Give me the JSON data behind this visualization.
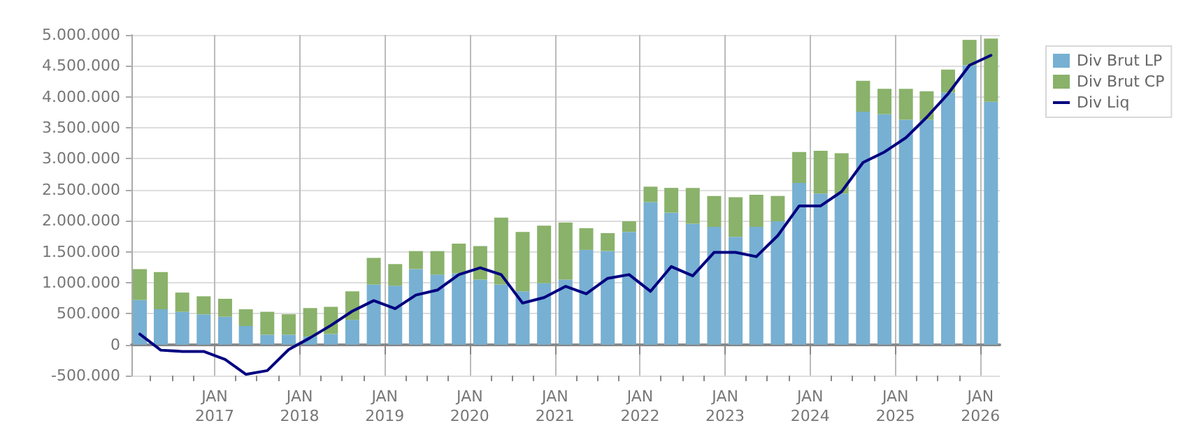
{
  "chart_data": {
    "type": "bar",
    "stacked": true,
    "x": [
      "2016-02-15",
      "2016-05-15",
      "2016-08-15",
      "2016-11-15",
      "2017-02-15",
      "2017-05-15",
      "2017-08-15",
      "2017-11-15",
      "2018-02-15",
      "2018-05-15",
      "2018-08-15",
      "2018-11-15",
      "2019-02-15",
      "2019-05-15",
      "2019-08-15",
      "2019-11-15",
      "2020-02-15",
      "2020-05-15",
      "2020-08-15",
      "2020-11-15",
      "2021-02-15",
      "2021-05-15",
      "2021-08-15",
      "2021-11-15",
      "2022-02-15",
      "2022-05-15",
      "2022-08-15",
      "2022-11-15",
      "2023-02-15",
      "2023-05-15",
      "2023-08-15",
      "2023-11-15",
      "2024-02-15",
      "2024-05-15",
      "2024-08-15",
      "2024-11-15",
      "2025-02-15",
      "2025-05-15",
      "2025-08-15",
      "2025-11-15",
      "2026-02-15"
    ],
    "series": [
      {
        "name": "Div Brut LP",
        "color": "#77b0d2",
        "values": [
          720000,
          570000,
          530000,
          490000,
          450000,
          300000,
          160000,
          160000,
          130000,
          170000,
          400000,
          970000,
          950000,
          1220000,
          1130000,
          1150000,
          1050000,
          970000,
          860000,
          990000,
          1050000,
          1530000,
          1510000,
          1820000,
          2300000,
          2130000,
          1950000,
          1900000,
          1740000,
          1900000,
          1990000,
          2610000,
          2440000,
          2440000,
          3760000,
          3720000,
          3630000,
          3630000,
          4070000,
          4510000,
          3920000
        ]
      },
      {
        "name": "Div Brut CP",
        "color": "#8ab26a",
        "values": [
          500000,
          600000,
          310000,
          290000,
          290000,
          270000,
          370000,
          330000,
          460000,
          440000,
          460000,
          430000,
          350000,
          290000,
          380000,
          480000,
          540000,
          1080000,
          960000,
          930000,
          920000,
          350000,
          290000,
          170000,
          250000,
          400000,
          580000,
          500000,
          640000,
          520000,
          410000,
          500000,
          690000,
          650000,
          500000,
          410000,
          500000,
          460000,
          370000,
          410000,
          1020000
        ]
      },
      {
        "name": "Div Liq",
        "type": "line",
        "color": "#000080",
        "values": [
          170000,
          -90000,
          -110000,
          -110000,
          -240000,
          -480000,
          -420000,
          -80000,
          110000,
          310000,
          540000,
          710000,
          580000,
          800000,
          880000,
          1130000,
          1240000,
          1130000,
          670000,
          760000,
          940000,
          820000,
          1070000,
          1130000,
          860000,
          1260000,
          1110000,
          1490000,
          1490000,
          1420000,
          1760000,
          2240000,
          2240000,
          2470000,
          2940000,
          3110000,
          3340000,
          3670000,
          4050000,
          4510000,
          4670000
        ]
      }
    ],
    "xlim": [
      "2016-01-10",
      "2026-03-25"
    ],
    "xticks": [
      {
        "value": "2016-04-01",
        "label": null
      },
      {
        "value": "2016-07-01",
        "label": null
      },
      {
        "value": "2016-10-01",
        "label": null
      },
      {
        "value": "2017-01-01",
        "label": "JAN\n2017"
      },
      {
        "value": "2017-04-01",
        "label": null
      },
      {
        "value": "2017-07-01",
        "label": null
      },
      {
        "value": "2017-10-01",
        "label": null
      },
      {
        "value": "2018-01-01",
        "label": "JAN\n2018"
      },
      {
        "value": "2018-04-01",
        "label": null
      },
      {
        "value": "2018-07-01",
        "label": null
      },
      {
        "value": "2018-10-01",
        "label": null
      },
      {
        "value": "2019-01-01",
        "label": "JAN\n2019"
      },
      {
        "value": "2019-04-01",
        "label": null
      },
      {
        "value": "2019-07-01",
        "label": null
      },
      {
        "value": "2019-10-01",
        "label": null
      },
      {
        "value": "2020-01-01",
        "label": "JAN\n2020"
      },
      {
        "value": "2020-04-01",
        "label": null
      },
      {
        "value": "2020-07-01",
        "label": null
      },
      {
        "value": "2020-10-01",
        "label": null
      },
      {
        "value": "2021-01-01",
        "label": "JAN\n2021"
      },
      {
        "value": "2021-04-01",
        "label": null
      },
      {
        "value": "2021-07-01",
        "label": null
      },
      {
        "value": "2021-10-01",
        "label": null
      },
      {
        "value": "2022-01-01",
        "label": "JAN\n2022"
      },
      {
        "value": "2022-04-01",
        "label": null
      },
      {
        "value": "2022-07-01",
        "label": null
      },
      {
        "value": "2022-10-01",
        "label": null
      },
      {
        "value": "2023-01-01",
        "label": "JAN\n2023"
      },
      {
        "value": "2023-04-01",
        "label": null
      },
      {
        "value": "2023-07-01",
        "label": null
      },
      {
        "value": "2023-10-01",
        "label": null
      },
      {
        "value": "2024-01-01",
        "label": "JAN\n2024"
      },
      {
        "value": "2024-04-01",
        "label": null
      },
      {
        "value": "2024-07-01",
        "label": null
      },
      {
        "value": "2024-10-01",
        "label": null
      },
      {
        "value": "2025-01-01",
        "label": "JAN\n2025"
      },
      {
        "value": "2025-04-01",
        "label": null
      },
      {
        "value": "2025-07-01",
        "label": null
      },
      {
        "value": "2025-10-01",
        "label": null
      },
      {
        "value": "2026-01-01",
        "label": "JAN\n2026"
      }
    ],
    "ylim": [
      -500000,
      5000000
    ],
    "yticks": [
      {
        "value": -500000,
        "label": "-500.000"
      },
      {
        "value": 0,
        "label": "0"
      },
      {
        "value": 500000,
        "label": "500.000"
      },
      {
        "value": 1000000,
        "label": "1.000.000"
      },
      {
        "value": 1500000,
        "label": "1.500.000"
      },
      {
        "value": 2000000,
        "label": "2.000.000"
      },
      {
        "value": 2500000,
        "label": "2.500.000"
      },
      {
        "value": 3000000,
        "label": "3.000.000"
      },
      {
        "value": 3500000,
        "label": "3.500.000"
      },
      {
        "value": 4000000,
        "label": "4.000.000"
      },
      {
        "value": 4500000,
        "label": "4.500.000"
      },
      {
        "value": 5000000,
        "label": "5.000.000"
      }
    ],
    "grid": true,
    "legend": "top right",
    "marker": "none",
    "line_style": "solid"
  }
}
